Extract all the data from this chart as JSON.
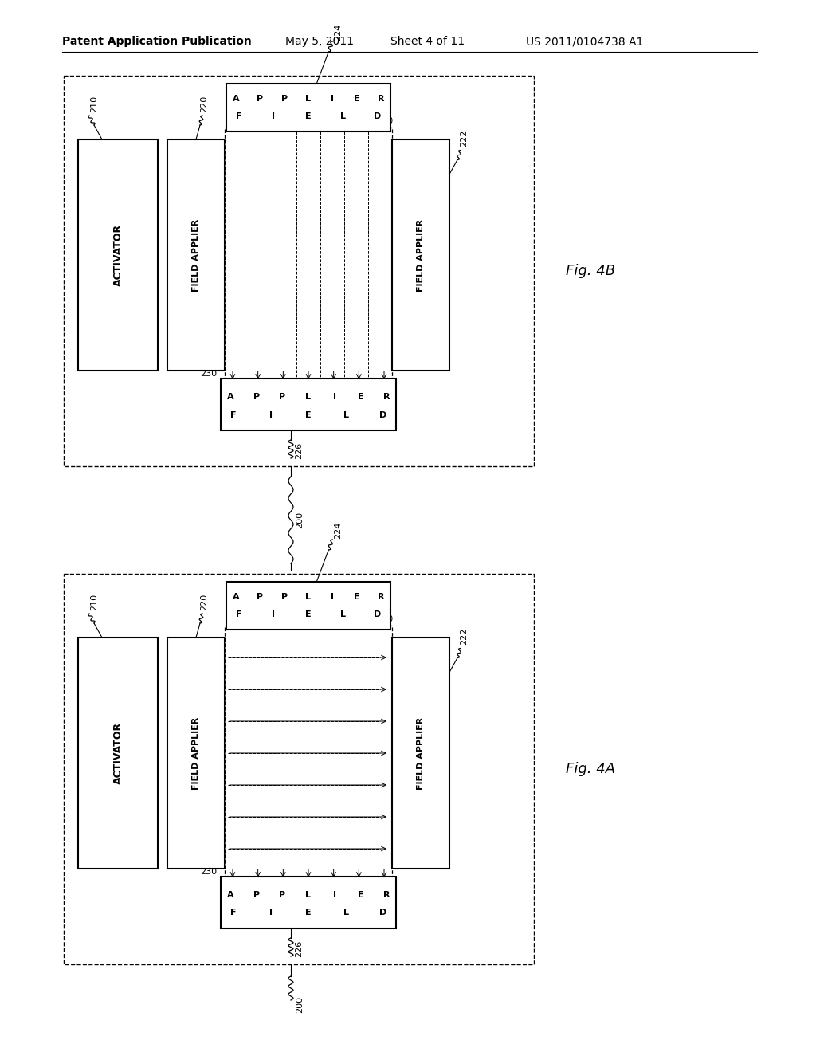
{
  "bg_color": "#ffffff",
  "line_color": "#000000",
  "header_text": "Patent Application Publication",
  "header_date": "May 5, 2011",
  "header_sheet": "Sheet 4 of 11",
  "header_patent": "US 2011/0104738 A1",
  "fig4b_label": "Fig. 4B",
  "fig4a_label": "Fig. 4A",
  "row1_letters": [
    "A",
    "P",
    "P",
    "L",
    "I",
    "E",
    "R"
  ],
  "row2_letters": [
    "F",
    "I",
    "E",
    "L",
    "D"
  ],
  "activator_text": "ACTIVATOR",
  "field_applier_text": "FIELD APPLIER"
}
